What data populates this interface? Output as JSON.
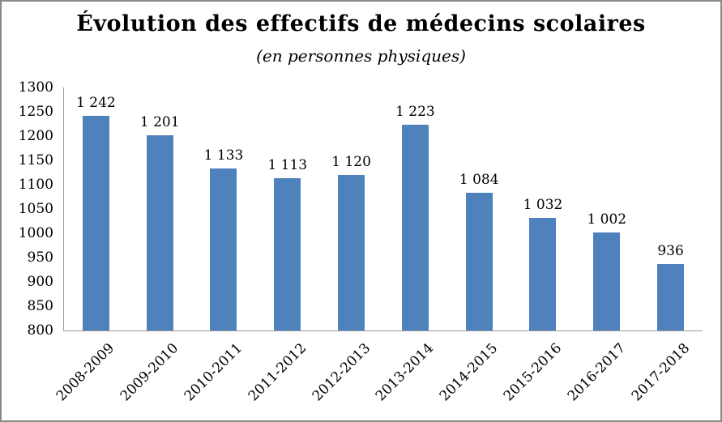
{
  "frame": {
    "background_color": "#FFFFFF",
    "border_color": "#8A8A8A"
  },
  "chart_data": {
    "type": "bar",
    "title": "Évolution des effectifs de médecins scolaires",
    "subtitle": "(en personnes physiques)",
    "categories": [
      "2008-2009",
      "2009-2010",
      "2010-2011",
      "2011-2012",
      "2012-2013",
      "2013-2014",
      "2014-2015",
      "2015-2016",
      "2016-2017",
      "2017-2018"
    ],
    "values": [
      1242,
      1201,
      1133,
      1113,
      1120,
      1223,
      1084,
      1032,
      1002,
      936
    ],
    "value_labels": [
      "1 242",
      "1 201",
      "1 133",
      "1 113",
      "1 120",
      "1 223",
      "1 084",
      "1 032",
      "1 002",
      "936"
    ],
    "y_ticks": [
      1300,
      1250,
      1200,
      1150,
      1100,
      1050,
      1000,
      950,
      900,
      850,
      800
    ],
    "ylim": [
      800,
      1300
    ],
    "xlabel": "",
    "ylabel": "",
    "grid": false,
    "legend": "none",
    "bar_color": "#4F81BD",
    "axis_color": "#9A9A9A",
    "text_color": "#000000"
  }
}
